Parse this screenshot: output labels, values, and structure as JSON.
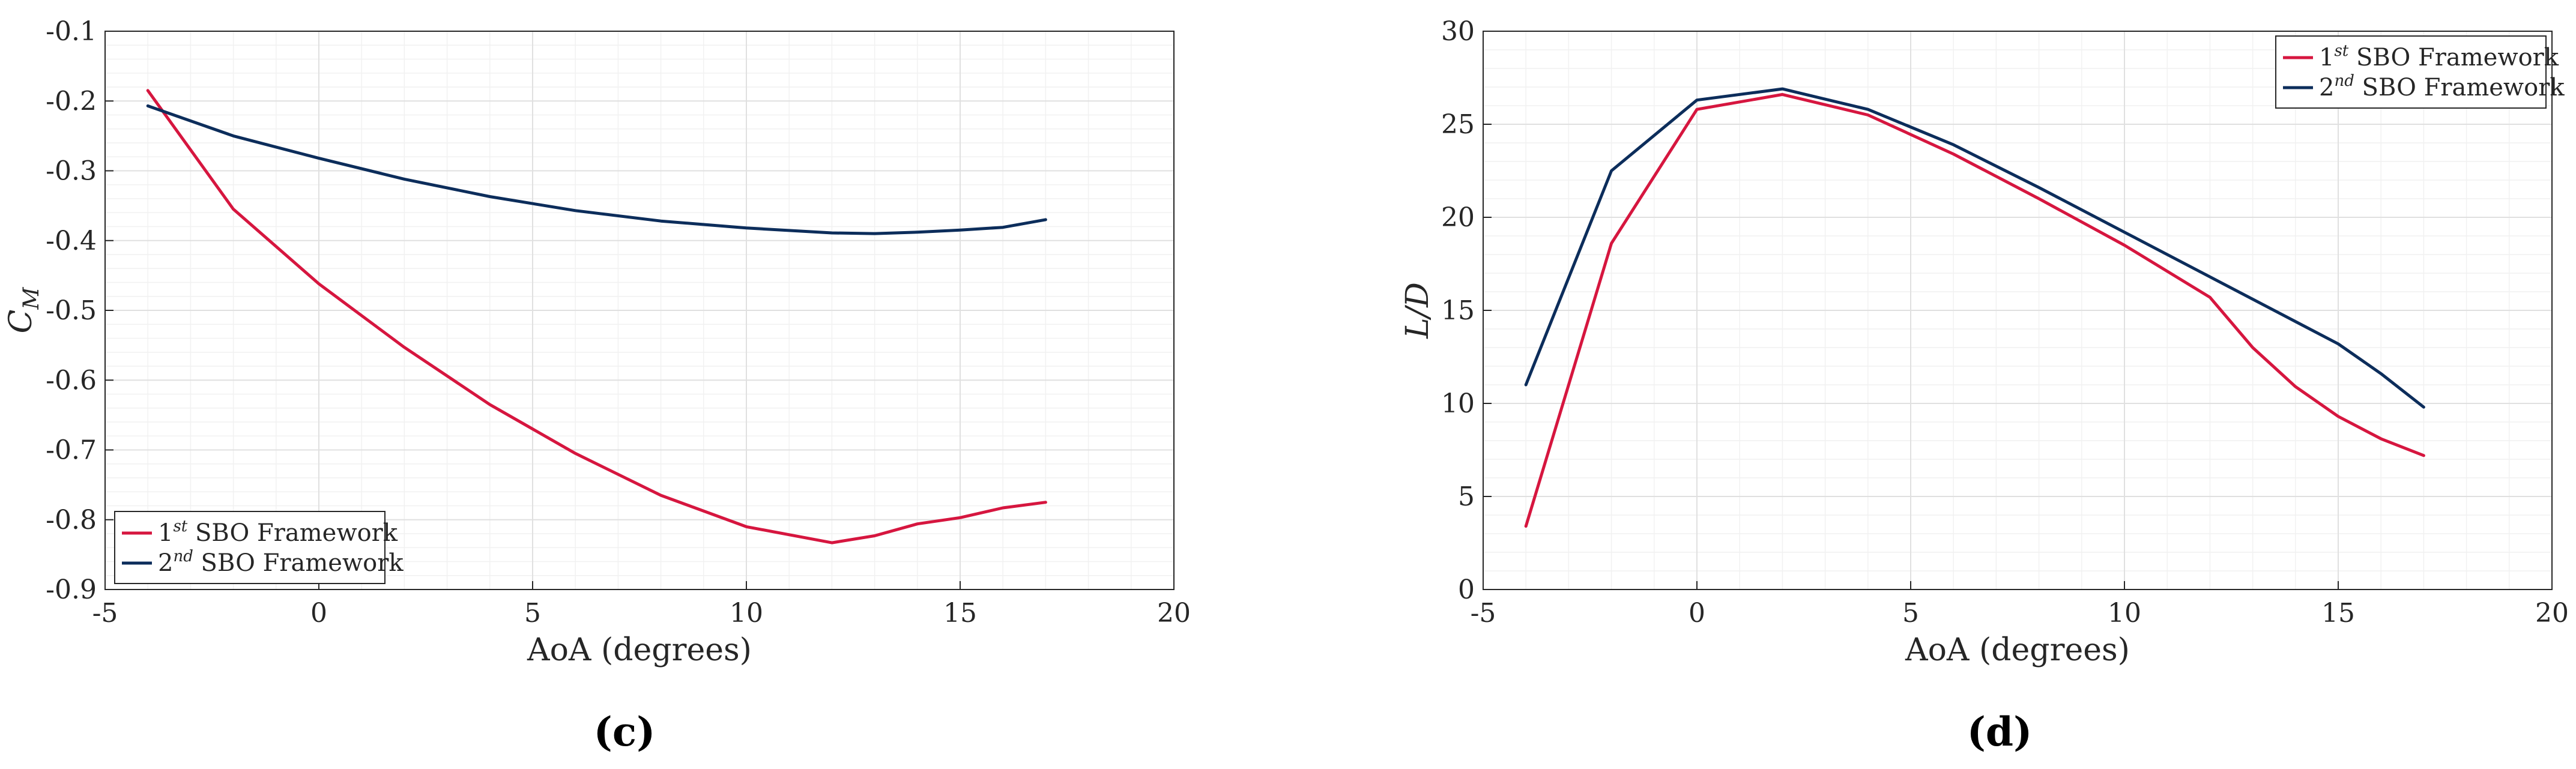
{
  "colors": {
    "series1": "#d6163f",
    "series2": "#0c2d5b",
    "axis": "#262626",
    "major_grid": "#e0e0e0",
    "minor_grid": "#f1f1f1"
  },
  "chart_data": [
    {
      "type": "line",
      "panel_label": "(c)",
      "xlabel": "AoA (degrees)",
      "ylabel": "C_M",
      "ylabel_main": "C",
      "ylabel_sub": "M",
      "xlim": [
        -5,
        20
      ],
      "ylim": [
        -0.9,
        -0.1
      ],
      "xticks": [
        -5,
        0,
        5,
        10,
        15,
        20
      ],
      "xtick_labels": [
        "-5",
        "0",
        "5",
        "10",
        "15",
        "20"
      ],
      "yticks": [
        -0.9,
        -0.8,
        -0.7,
        -0.6,
        -0.5,
        -0.4,
        -0.3,
        -0.2,
        -0.1
      ],
      "ytick_labels": [
        "-0.9",
        "-0.8",
        "-0.7",
        "-0.6",
        "-0.5",
        "-0.4",
        "-0.3",
        "-0.2",
        "-0.1"
      ],
      "grid": true,
      "legend_position": "bottom-left",
      "series": [
        {
          "name": "1st SBO Framework",
          "legend_base": "1",
          "legend_sup": "st",
          "legend_rest": " SBO Framework",
          "color": "#d6163f",
          "x": [
            -4,
            -2,
            0,
            2,
            4,
            6,
            8,
            10,
            12,
            13,
            14,
            15,
            16,
            17
          ],
          "y": [
            -0.185,
            -0.355,
            -0.462,
            -0.553,
            -0.635,
            -0.705,
            -0.765,
            -0.81,
            -0.833,
            -0.823,
            -0.806,
            -0.797,
            -0.783,
            -0.775
          ]
        },
        {
          "name": "2nd SBO Framework",
          "legend_base": "2",
          "legend_sup": "nd",
          "legend_rest": " SBO Framework",
          "color": "#0c2d5b",
          "x": [
            -4,
            -2,
            0,
            2,
            4,
            6,
            8,
            10,
            12,
            13,
            14,
            15,
            16,
            17
          ],
          "y": [
            -0.207,
            -0.25,
            -0.282,
            -0.312,
            -0.337,
            -0.357,
            -0.372,
            -0.382,
            -0.389,
            -0.39,
            -0.388,
            -0.385,
            -0.381,
            -0.37
          ]
        }
      ]
    },
    {
      "type": "line",
      "panel_label": "(d)",
      "xlabel": "AoA (degrees)",
      "ylabel": "L/D",
      "xlim": [
        -5,
        20
      ],
      "ylim": [
        0,
        30
      ],
      "xticks": [
        -5,
        0,
        5,
        10,
        15,
        20
      ],
      "xtick_labels": [
        "-5",
        "0",
        "5",
        "10",
        "15",
        "20"
      ],
      "yticks": [
        0,
        5,
        10,
        15,
        20,
        25,
        30
      ],
      "ytick_labels": [
        "0",
        "5",
        "10",
        "15",
        "20",
        "25",
        "30"
      ],
      "grid": true,
      "legend_position": "top-right",
      "series": [
        {
          "name": "1st SBO Framework",
          "legend_base": "1",
          "legend_sup": "st",
          "legend_rest": " SBO Framework",
          "color": "#d6163f",
          "x": [
            -4,
            -2,
            0,
            2,
            4,
            6,
            8,
            10,
            12,
            13,
            14,
            15,
            16,
            17
          ],
          "y": [
            3.4,
            18.6,
            25.8,
            26.6,
            25.5,
            23.4,
            21.0,
            18.5,
            15.7,
            13.0,
            10.9,
            9.3,
            8.1,
            7.2
          ]
        },
        {
          "name": "2nd SBO Framework",
          "legend_base": "2",
          "legend_sup": "nd",
          "legend_rest": " SBO Framework",
          "color": "#0c2d5b",
          "x": [
            -4,
            -2,
            0,
            2,
            4,
            6,
            8,
            10,
            12,
            14,
            15,
            16,
            17
          ],
          "y": [
            11.0,
            22.5,
            26.3,
            26.9,
            25.8,
            23.9,
            21.6,
            19.2,
            16.8,
            14.4,
            13.2,
            11.6,
            9.8
          ]
        }
      ]
    }
  ]
}
